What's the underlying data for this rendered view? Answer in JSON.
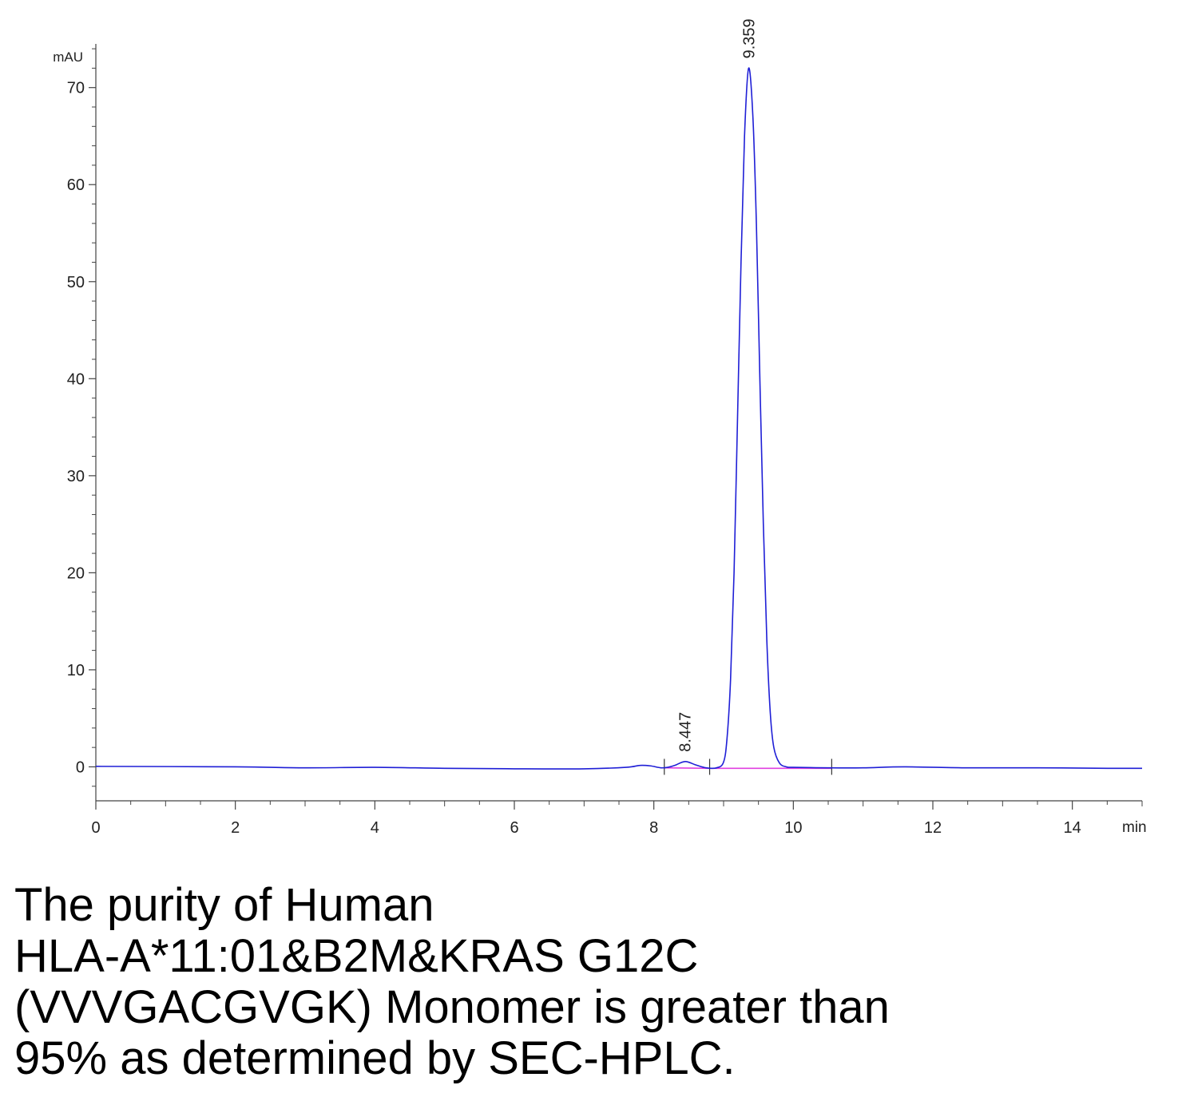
{
  "chart_data": {
    "type": "line",
    "title": "",
    "xlabel": "",
    "ylabel": "",
    "x_unit_label": "min",
    "y_unit_label": "mAU",
    "xlim": [
      0,
      15
    ],
    "ylim": [
      -3.5,
      74.5
    ],
    "x_ticks_major": [
      0,
      2,
      4,
      6,
      8,
      10,
      12,
      14
    ],
    "y_ticks_major": [
      0,
      10,
      20,
      30,
      40,
      50,
      60,
      70
    ],
    "series": [
      {
        "line_color": "#1f1fd6",
        "points": [
          [
            0.0,
            0.05
          ],
          [
            2.0,
            0.0
          ],
          [
            3.0,
            -0.1
          ],
          [
            4.0,
            -0.05
          ],
          [
            5.0,
            -0.15
          ],
          [
            6.0,
            -0.2
          ],
          [
            7.0,
            -0.2
          ],
          [
            7.6,
            -0.05
          ],
          [
            7.8,
            0.15
          ],
          [
            7.95,
            0.1
          ],
          [
            8.1,
            -0.1
          ],
          [
            8.2,
            -0.05
          ],
          [
            8.3,
            0.15
          ],
          [
            8.45,
            0.55
          ],
          [
            8.6,
            0.2
          ],
          [
            8.75,
            -0.1
          ],
          [
            8.9,
            -0.1
          ],
          [
            9.0,
            0.5
          ],
          [
            9.05,
            3.0
          ],
          [
            9.1,
            9.0
          ],
          [
            9.15,
            20.0
          ],
          [
            9.2,
            36.0
          ],
          [
            9.25,
            52.0
          ],
          [
            9.3,
            65.0
          ],
          [
            9.359,
            72.0
          ],
          [
            9.42,
            67.0
          ],
          [
            9.47,
            56.0
          ],
          [
            9.52,
            40.0
          ],
          [
            9.57,
            25.0
          ],
          [
            9.62,
            13.0
          ],
          [
            9.67,
            5.5
          ],
          [
            9.72,
            2.0
          ],
          [
            9.8,
            0.4
          ],
          [
            9.9,
            0.0
          ],
          [
            10.0,
            -0.05
          ],
          [
            10.5,
            -0.1
          ],
          [
            11.0,
            -0.1
          ],
          [
            11.6,
            0.0
          ],
          [
            12.5,
            -0.1
          ],
          [
            13.5,
            -0.1
          ],
          [
            14.5,
            -0.15
          ],
          [
            15.0,
            -0.15
          ]
        ]
      }
    ],
    "baselines": [
      {
        "line_color": "#e040e0",
        "from": [
          8.15,
          -0.1
        ],
        "to": [
          8.8,
          -0.15
        ]
      },
      {
        "line_color": "#e040e0",
        "from": [
          8.8,
          -0.15
        ],
        "to": [
          10.55,
          -0.15
        ]
      }
    ],
    "integration_marks": [
      8.15,
      8.8,
      10.55
    ],
    "peaks": [
      {
        "rt": 8.447,
        "label": "8.447",
        "height": 0.55
      },
      {
        "rt": 9.359,
        "label": "9.359",
        "height": 72.0
      }
    ]
  },
  "caption": {
    "lines": [
      "The purity of Human",
      "HLA-A*11:01&B2M&KRAS G12C",
      "(VVVGACGVGK) Monomer is greater than",
      "95% as determined by SEC-HPLC."
    ]
  }
}
